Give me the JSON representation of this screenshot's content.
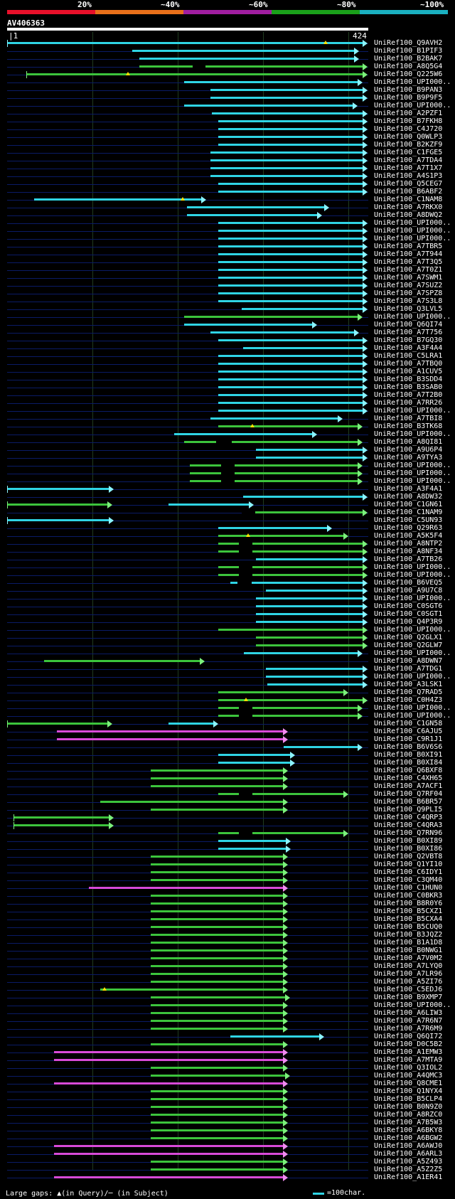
{
  "scale": {
    "labels": [
      "20%",
      "~40%",
      "~60%",
      "~80%",
      "~100%"
    ],
    "bands": [
      {
        "label": "20%",
        "color": "#e8102a"
      },
      {
        "label": "~40%",
        "color": "#e8701a"
      },
      {
        "label": "~60%",
        "color": "#a01ea0"
      },
      {
        "label": "~80%",
        "color": "#1aa01a"
      },
      {
        "label": "~100%",
        "color": "#1ab0c0"
      }
    ]
  },
  "query": {
    "name": "AV406363",
    "start": "1",
    "end": "424",
    "length": 424
  },
  "colors": {
    "cyan": "#2fd4e4",
    "green": "#3cc43c",
    "magenta": "#d84ad8",
    "greenTip": "#7cf07c"
  },
  "hits": [
    {
      "id": "UniRef100_Q9AVH2",
      "s": 1,
      "e": 424,
      "c": "cyan",
      "t": false,
      "a": [
        [
          380,
          1
        ]
      ]
    },
    {
      "id": "UniRef100_B1PIF3",
      "s": 150,
      "e": 414,
      "c": "cyan"
    },
    {
      "id": "UniRef100_B2BAK7",
      "s": 158,
      "e": 414,
      "c": "cyan"
    },
    {
      "id": "UniRef100_A8Q5G4",
      "s": 158,
      "e": 424,
      "c": "green",
      "g": [
        [
          222,
          237
        ]
      ]
    },
    {
      "id": "UniRef100_Q225W6",
      "s": 24,
      "e": 424,
      "c": "green",
      "a": [
        [
          145,
          1
        ]
      ]
    },
    {
      "id": "UniRef100_UPI000..",
      "s": 212,
      "e": 418,
      "c": "cyan"
    },
    {
      "id": "UniRef100_B9PAN3",
      "s": 243,
      "e": 424,
      "c": "cyan"
    },
    {
      "id": "UniRef100_B9P9F5",
      "s": 243,
      "e": 424,
      "c": "cyan"
    },
    {
      "id": "UniRef100_UPI000..",
      "s": 212,
      "e": 412,
      "c": "cyan"
    },
    {
      "id": "UniRef100_A2PZF1",
      "s": 245,
      "e": 424,
      "c": "cyan"
    },
    {
      "id": "UniRef100_B7FKH8",
      "s": 252,
      "e": 424,
      "c": "cyan"
    },
    {
      "id": "UniRef100_C4J720",
      "s": 252,
      "e": 424,
      "c": "cyan"
    },
    {
      "id": "UniRef100_Q0WLP3",
      "s": 252,
      "e": 424,
      "c": "cyan"
    },
    {
      "id": "UniRef100_B2KZF9",
      "s": 252,
      "e": 424,
      "c": "cyan"
    },
    {
      "id": "UniRef100_C1FGE5",
      "s": 243,
      "e": 424,
      "c": "cyan"
    },
    {
      "id": "UniRef100_A7TDA4",
      "s": 243,
      "e": 424,
      "c": "cyan"
    },
    {
      "id": "UniRef100_A7T1X7",
      "s": 243,
      "e": 424,
      "c": "cyan"
    },
    {
      "id": "UniRef100_A4S1P3",
      "s": 243,
      "e": 424,
      "c": "cyan"
    },
    {
      "id": "UniRef100_Q5CEG7",
      "s": 252,
      "e": 424,
      "c": "cyan"
    },
    {
      "id": "UniRef100_B6ABF2",
      "s": 252,
      "e": 424,
      "c": "cyan"
    },
    {
      "id": "UniRef100_C1NAM8",
      "s": 33,
      "e": 232,
      "c": "cyan",
      "a": [
        [
          210,
          1
        ]
      ]
    },
    {
      "id": "UniRef100_A7RKX0",
      "s": 215,
      "e": 378,
      "c": "cyan"
    },
    {
      "id": "UniRef100_A8DWQ2",
      "s": 215,
      "e": 370,
      "c": "cyan"
    },
    {
      "id": "UniRef100_UPI000..",
      "s": 252,
      "e": 424,
      "c": "cyan"
    },
    {
      "id": "UniRef100_UPI000..",
      "s": 252,
      "e": 424,
      "c": "cyan"
    },
    {
      "id": "UniRef100_UPI000..",
      "s": 252,
      "e": 424,
      "c": "cyan"
    },
    {
      "id": "UniRef100_A7TBR5",
      "s": 252,
      "e": 424,
      "c": "cyan"
    },
    {
      "id": "UniRef100_A7T944",
      "s": 252,
      "e": 424,
      "c": "cyan"
    },
    {
      "id": "UniRef100_A7T3Q5",
      "s": 252,
      "e": 424,
      "c": "cyan"
    },
    {
      "id": "UniRef100_A7T0Z1",
      "s": 252,
      "e": 424,
      "c": "cyan"
    },
    {
      "id": "UniRef100_A7SWM1",
      "s": 252,
      "e": 424,
      "c": "cyan"
    },
    {
      "id": "UniRef100_A7SUZ2",
      "s": 252,
      "e": 424,
      "c": "cyan"
    },
    {
      "id": "UniRef100_A7SPZ8",
      "s": 252,
      "e": 424,
      "c": "cyan"
    },
    {
      "id": "UniRef100_A7S3L8",
      "s": 252,
      "e": 424,
      "c": "cyan"
    },
    {
      "id": "UniRef100_Q3LVL5",
      "s": 280,
      "e": 424,
      "c": "cyan"
    },
    {
      "id": "UniRef100_UPI000..",
      "s": 212,
      "e": 418,
      "c": "green"
    },
    {
      "id": "UniRef100_Q6QI74",
      "s": 212,
      "e": 364,
      "c": "cyan"
    },
    {
      "id": "UniRef100_A7T756",
      "s": 243,
      "e": 414,
      "c": "cyan"
    },
    {
      "id": "UniRef100_B7GQ30",
      "s": 252,
      "e": 424,
      "c": "cyan"
    },
    {
      "id": "UniRef100_A3F4A4",
      "s": 282,
      "e": 424,
      "c": "cyan"
    },
    {
      "id": "UniRef100_C5LRA1",
      "s": 252,
      "e": 424,
      "c": "cyan"
    },
    {
      "id": "UniRef100_A7TBQ0",
      "s": 252,
      "e": 424,
      "c": "cyan"
    },
    {
      "id": "UniRef100_A1CUV5",
      "s": 252,
      "e": 424,
      "c": "cyan"
    },
    {
      "id": "UniRef100_B3SDD4",
      "s": 252,
      "e": 424,
      "c": "cyan"
    },
    {
      "id": "UniRef100_B3SAB0",
      "s": 252,
      "e": 424,
      "c": "cyan"
    },
    {
      "id": "UniRef100_A7T2B0",
      "s": 252,
      "e": 424,
      "c": "cyan"
    },
    {
      "id": "UniRef100_A7RR26",
      "s": 252,
      "e": 424,
      "c": "cyan"
    },
    {
      "id": "UniRef100_UPI000..",
      "s": 252,
      "e": 424,
      "c": "cyan"
    },
    {
      "id": "UniRef100_A7TBI8",
      "s": 243,
      "e": 394,
      "c": "cyan"
    },
    {
      "id": "UniRef100_B3TK68",
      "s": 252,
      "e": 418,
      "c": "green",
      "a": [
        [
          293,
          1
        ]
      ]
    },
    {
      "id": "UniRef100_UPI000..",
      "s": 200,
      "e": 364,
      "c": "cyan"
    },
    {
      "id": "UniRef100_A8QI81",
      "s": 212,
      "e": 418,
      "c": "green",
      "g": [
        [
          250,
          268
        ]
      ]
    },
    {
      "id": "UniRef100_A9U6P4",
      "s": 297,
      "e": 424,
      "c": "cyan"
    },
    {
      "id": "UniRef100_A9TYA3",
      "s": 297,
      "e": 424,
      "c": "cyan"
    },
    {
      "id": "UniRef100_UPI000..",
      "s": 218,
      "e": 418,
      "c": "green",
      "g": [
        [
          256,
          272
        ]
      ]
    },
    {
      "id": "UniRef100_UPI000..",
      "s": 218,
      "e": 418,
      "c": "green",
      "g": [
        [
          256,
          272
        ]
      ]
    },
    {
      "id": "UniRef100_UPI000..",
      "s": 218,
      "e": 418,
      "c": "green",
      "g": [
        [
          256,
          272
        ]
      ]
    },
    {
      "id": "UniRef100_A3F4A1",
      "s": 1,
      "e": 122,
      "c": "cyan"
    },
    {
      "id": "UniRef100_A8DW32",
      "s": 282,
      "e": 424,
      "c": "cyan"
    },
    {
      "id": "UniRef100_C1GN61",
      "s": 1,
      "e": 120,
      "c": "green",
      "s2": 193,
      "e2": 289,
      "c2": "cyan"
    },
    {
      "id": "UniRef100_C1NAM9",
      "s": 280,
      "e": 424,
      "c": "green",
      "g": [
        [
          280,
          296
        ]
      ]
    },
    {
      "id": "UniRef100_C5UN93",
      "s": 1,
      "e": 122,
      "c": "cyan"
    },
    {
      "id": "UniRef100_Q29R63",
      "s": 252,
      "e": 382,
      "c": "cyan"
    },
    {
      "id": "UniRef100_A5K5F4",
      "s": 252,
      "e": 401,
      "c": "green",
      "a": [
        [
          288,
          1
        ]
      ]
    },
    {
      "id": "UniRef100_A8NTP2",
      "s": 252,
      "e": 424,
      "c": "green",
      "g": [
        [
          277,
          293
        ]
      ]
    },
    {
      "id": "UniRef100_A8NF34",
      "s": 252,
      "e": 424,
      "c": "green",
      "g": [
        [
          277,
          293
        ]
      ]
    },
    {
      "id": "UniRef100_A7TB26",
      "s": 297,
      "e": 424,
      "c": "cyan"
    },
    {
      "id": "UniRef100_UPI000..",
      "s": 252,
      "e": 424,
      "c": "green",
      "g": [
        [
          277,
          293
        ]
      ]
    },
    {
      "id": "UniRef100_UPI000..",
      "s": 252,
      "e": 424,
      "c": "green",
      "g": [
        [
          277,
          293
        ]
      ]
    },
    {
      "id": "UniRef100_B6VEQ5",
      "s": 267,
      "e": 424,
      "c": "cyan",
      "g": [
        [
          275,
          292
        ]
      ]
    },
    {
      "id": "UniRef100_A9U7C8",
      "s": 309,
      "e": 424,
      "c": "cyan"
    },
    {
      "id": "UniRef100_UPI000..",
      "s": 297,
      "e": 424,
      "c": "cyan"
    },
    {
      "id": "UniRef100_C0SGT6",
      "s": 297,
      "e": 424,
      "c": "cyan"
    },
    {
      "id": "UniRef100_C0SGT1",
      "s": 297,
      "e": 424,
      "c": "cyan"
    },
    {
      "id": "UniRef100_Q4P3R9",
      "s": 297,
      "e": 424,
      "c": "cyan"
    },
    {
      "id": "UniRef100_UPI000..",
      "s": 252,
      "e": 424,
      "c": "green"
    },
    {
      "id": "UniRef100_Q2GLX1",
      "s": 297,
      "e": 424,
      "c": "green"
    },
    {
      "id": "UniRef100_Q2GLW7",
      "s": 297,
      "e": 424,
      "c": "green"
    },
    {
      "id": "UniRef100_UPI000..",
      "s": 283,
      "e": 418,
      "c": "cyan"
    },
    {
      "id": "UniRef100_A8DWN7",
      "s": 45,
      "e": 230,
      "c": "green"
    },
    {
      "id": "UniRef100_A7TDG1",
      "s": 309,
      "e": 424,
      "c": "cyan"
    },
    {
      "id": "UniRef100_UPI000..",
      "s": 309,
      "e": 424,
      "c": "cyan"
    },
    {
      "id": "UniRef100_A3LSK1",
      "s": 311,
      "e": 424,
      "c": "cyan"
    },
    {
      "id": "UniRef100_Q7RAD5",
      "s": 252,
      "e": 401,
      "c": "green"
    },
    {
      "id": "UniRef100_C0H4Z3",
      "s": 252,
      "e": 424,
      "c": "green",
      "a": [
        [
          285,
          1
        ]
      ]
    },
    {
      "id": "UniRef100_UPI000..",
      "s": 252,
      "e": 418,
      "c": "green",
      "g": [
        [
          277,
          293
        ]
      ]
    },
    {
      "id": "UniRef100_UPI000..",
      "s": 252,
      "e": 418,
      "c": "green",
      "g": [
        [
          277,
          293
        ]
      ]
    },
    {
      "id": "UniRef100_C1GN58",
      "s": 1,
      "e": 120,
      "c": "green",
      "s2": 193,
      "e2": 246,
      "c2": "cyan"
    },
    {
      "id": "UniRef100_C6AJU5",
      "s": 60,
      "e": 329,
      "c": "magenta"
    },
    {
      "id": "UniRef100_C9R1J1",
      "s": 60,
      "e": 329,
      "c": "magenta"
    },
    {
      "id": "UniRef100_B6V6S6",
      "s": 330,
      "e": 418,
      "c": "cyan"
    },
    {
      "id": "UniRef100_B0XI91",
      "s": 252,
      "e": 338,
      "c": "cyan"
    },
    {
      "id": "UniRef100_B0XI84",
      "s": 252,
      "e": 338,
      "c": "cyan"
    },
    {
      "id": "UniRef100_Q6BXF8",
      "s": 172,
      "e": 329,
      "c": "green"
    },
    {
      "id": "UniRef100_C4XH65",
      "s": 172,
      "e": 329,
      "c": "green"
    },
    {
      "id": "UniRef100_A7ACF1",
      "s": 172,
      "e": 329,
      "c": "green"
    },
    {
      "id": "UniRef100_Q7RF04",
      "s": 252,
      "e": 401,
      "c": "green",
      "g": [
        [
          277,
          293
        ]
      ]
    },
    {
      "id": "UniRef100_B6BR57",
      "s": 112,
      "e": 329,
      "c": "green"
    },
    {
      "id": "UniRef100_Q9PLI5",
      "s": 172,
      "e": 329,
      "c": "green"
    },
    {
      "id": "UniRef100_C4QRP3",
      "s": 9,
      "e": 122,
      "c": "green"
    },
    {
      "id": "UniRef100_C4QRA3",
      "s": 9,
      "e": 122,
      "c": "green"
    },
    {
      "id": "UniRef100_Q7RN96",
      "s": 252,
      "e": 401,
      "c": "green",
      "g": [
        [
          277,
          293
        ]
      ]
    },
    {
      "id": "UniRef100_B0XI89",
      "s": 252,
      "e": 333,
      "c": "cyan"
    },
    {
      "id": "UniRef100_B0XI86",
      "s": 252,
      "e": 333,
      "c": "cyan"
    },
    {
      "id": "UniRef100_Q2VBT8",
      "s": 172,
      "e": 329,
      "c": "green"
    },
    {
      "id": "UniRef100_Q1YI10",
      "s": 172,
      "e": 329,
      "c": "green"
    },
    {
      "id": "UniRef100_C6IDY1",
      "s": 172,
      "e": 329,
      "c": "green"
    },
    {
      "id": "UniRef100_C3QM40",
      "s": 172,
      "e": 329,
      "c": "green"
    },
    {
      "id": "UniRef100_C1HUN0",
      "s": 98,
      "e": 329,
      "c": "magenta"
    },
    {
      "id": "UniRef100_C0BKR3",
      "s": 172,
      "e": 329,
      "c": "green"
    },
    {
      "id": "UniRef100_B8R0Y6",
      "s": 172,
      "e": 329,
      "c": "green"
    },
    {
      "id": "UniRef100_B5CXZ1",
      "s": 172,
      "e": 329,
      "c": "green"
    },
    {
      "id": "UniRef100_B5CXA4",
      "s": 172,
      "e": 329,
      "c": "green"
    },
    {
      "id": "UniRef100_B5CUQ0",
      "s": 172,
      "e": 329,
      "c": "green"
    },
    {
      "id": "UniRef100_B3JQZ2",
      "s": 172,
      "e": 329,
      "c": "green"
    },
    {
      "id": "UniRef100_B1A1D8",
      "s": 172,
      "e": 329,
      "c": "green"
    },
    {
      "id": "UniRef100_B0NWG1",
      "s": 172,
      "e": 329,
      "c": "green"
    },
    {
      "id": "UniRef100_A7V0M2",
      "s": 172,
      "e": 329,
      "c": "green"
    },
    {
      "id": "UniRef100_A7LYQ0",
      "s": 172,
      "e": 329,
      "c": "green"
    },
    {
      "id": "UniRef100_A7LR96",
      "s": 172,
      "e": 329,
      "c": "green"
    },
    {
      "id": "UniRef100_A5ZI76",
      "s": 172,
      "e": 329,
      "c": "green"
    },
    {
      "id": "UniRef100_C5EDJ6",
      "s": 112,
      "e": 329,
      "c": "green",
      "a": [
        [
          117,
          1
        ]
      ]
    },
    {
      "id": "UniRef100_B9XMP7",
      "s": 172,
      "e": 332,
      "c": "green"
    },
    {
      "id": "UniRef100_UPI000..",
      "s": 172,
      "e": 329,
      "c": "green"
    },
    {
      "id": "UniRef100_A6LIW3",
      "s": 172,
      "e": 329,
      "c": "green"
    },
    {
      "id": "UniRef100_A7R6N7",
      "s": 172,
      "e": 329,
      "c": "green"
    },
    {
      "id": "UniRef100_A7R6M9",
      "s": 172,
      "e": 329,
      "c": "green"
    },
    {
      "id": "UniRef100_Q6QI72",
      "s": 267,
      "e": 372,
      "c": "cyan"
    },
    {
      "id": "UniRef100_D0C5B2",
      "s": 172,
      "e": 329,
      "c": "green"
    },
    {
      "id": "UniRef100_A1EMW3",
      "s": 57,
      "e": 329,
      "c": "magenta"
    },
    {
      "id": "UniRef100_A7MTA9",
      "s": 57,
      "e": 329,
      "c": "magenta"
    },
    {
      "id": "UniRef100_Q3IOL2",
      "s": 172,
      "e": 329,
      "c": "green"
    },
    {
      "id": "UniRef100_A4QMC3",
      "s": 172,
      "e": 332,
      "c": "green"
    },
    {
      "id": "UniRef100_Q8CME1",
      "s": 57,
      "e": 329,
      "c": "magenta"
    },
    {
      "id": "UniRef100_Q1NYX4",
      "s": 172,
      "e": 329,
      "c": "green"
    },
    {
      "id": "UniRef100_B5CLP4",
      "s": 172,
      "e": 329,
      "c": "green"
    },
    {
      "id": "UniRef100_B0N9Z0",
      "s": 172,
      "e": 329,
      "c": "green"
    },
    {
      "id": "UniRef100_A8RZC0",
      "s": 172,
      "e": 329,
      "c": "green"
    },
    {
      "id": "UniRef100_A7B5W3",
      "s": 172,
      "e": 329,
      "c": "green"
    },
    {
      "id": "UniRef100_A6BKY8",
      "s": 172,
      "e": 329,
      "c": "green"
    },
    {
      "id": "UniRef100_A6BGW2",
      "s": 172,
      "e": 329,
      "c": "green"
    },
    {
      "id": "UniRef100_A6AWJ0",
      "s": 57,
      "e": 329,
      "c": "magenta"
    },
    {
      "id": "UniRef100_A6ARL3",
      "s": 57,
      "e": 329,
      "c": "magenta"
    },
    {
      "id": "UniRef100_A5Z493",
      "s": 172,
      "e": 329,
      "c": "green"
    },
    {
      "id": "UniRef100_A5Z2Z5",
      "s": 172,
      "e": 329,
      "c": "green"
    },
    {
      "id": "UniRef100_A1ER41",
      "s": 57,
      "e": 329,
      "c": "magenta"
    }
  ],
  "footer": {
    "text": "Large gaps: ▲(in Query)/─ (in Subject)",
    "legend": "=100char."
  }
}
